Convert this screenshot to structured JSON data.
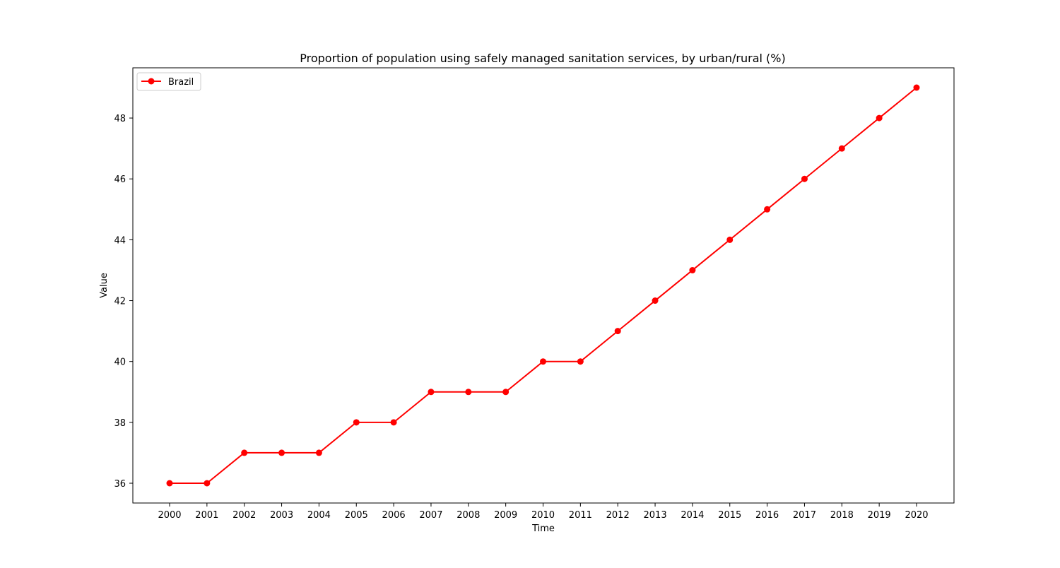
{
  "chart_data": {
    "type": "line",
    "title": "Proportion of population using safely managed sanitation services, by urban/rural (%)",
    "xlabel": "Time",
    "ylabel": "Value",
    "x": [
      "2000",
      "2001",
      "2002",
      "2003",
      "2004",
      "2005",
      "2006",
      "2007",
      "2008",
      "2009",
      "2010",
      "2011",
      "2012",
      "2013",
      "2014",
      "2015",
      "2016",
      "2017",
      "2018",
      "2019",
      "2020"
    ],
    "series": [
      {
        "name": "Brazil",
        "color": "#ff0000",
        "marker": "circle",
        "values": [
          36,
          36,
          37,
          37,
          37,
          38,
          38,
          39,
          39,
          39,
          40,
          40,
          41,
          42,
          43,
          44,
          45,
          46,
          47,
          48,
          49
        ]
      }
    ],
    "ylim": [
      35.35,
      49.65
    ],
    "yticks": [
      36,
      38,
      40,
      42,
      44,
      46,
      48
    ],
    "grid": false,
    "legend_position": "top-left"
  }
}
